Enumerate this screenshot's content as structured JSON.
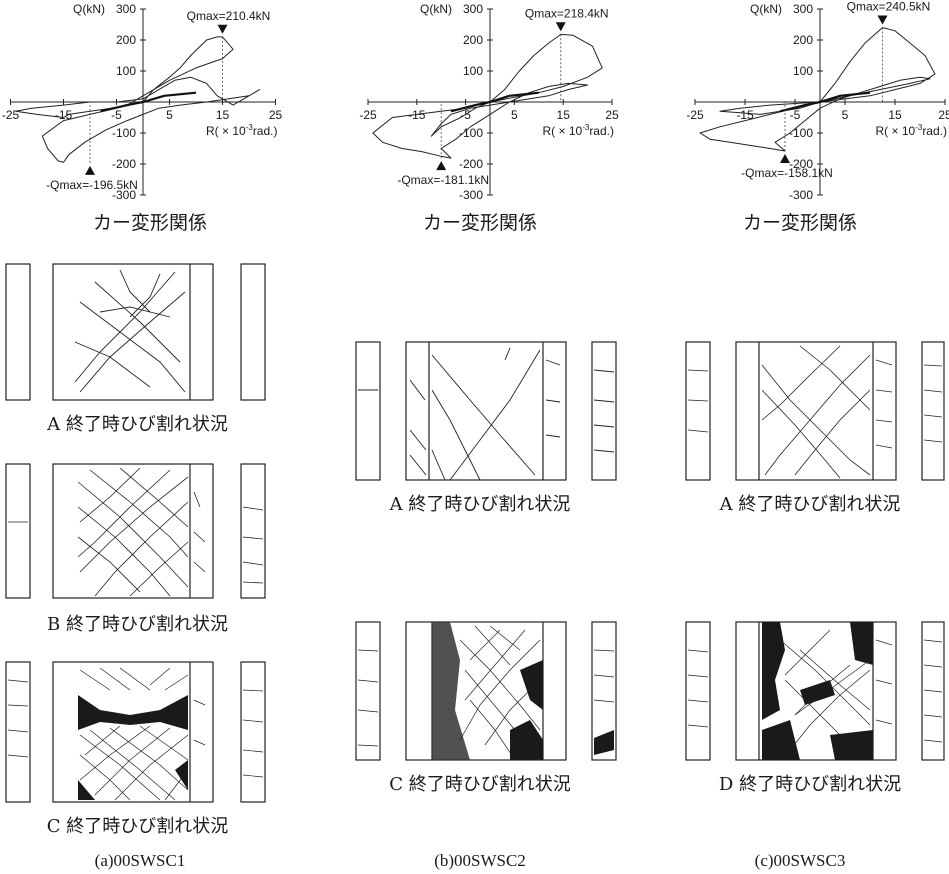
{
  "plot_title": "カー変形関係",
  "axis": {
    "y_label": "Q(kN)",
    "x_label": "R( × 10",
    "x_label_exp": "-3",
    "x_label_unit": "rad.)"
  },
  "specimens": [
    {
      "name": "(a)00SWSC1",
      "qmax_pos": "Qmax=210.4kN",
      "qmax_neg": "-Qmax=-196.5kN",
      "cracks": [
        "A 終了時ひび割れ状況",
        "B 終了時ひび割れ状況",
        "C 終了時ひび割れ状況"
      ]
    },
    {
      "name": "(b)00SWSC2",
      "qmax_pos": "Qmax=218.4kN",
      "qmax_neg": "-Qmax=-181.1kN",
      "cracks": [
        "A 終了時ひび割れ状況",
        "C 終了時ひび割れ状況"
      ]
    },
    {
      "name": "(c)00SWSC3",
      "qmax_pos": "Qmax=240.5kN",
      "qmax_neg": "-Qmax=-158.1kN",
      "cracks": [
        "A 終了時ひび割れ状況",
        "D 終了時ひび割れ状況"
      ]
    }
  ],
  "chart_data": [
    {
      "type": "line",
      "title": "カー変形関係",
      "xlabel": "R( × 10-3rad.)",
      "ylabel": "Q(kN)",
      "xlim": [
        -25,
        25
      ],
      "ylim": [
        -300,
        300
      ],
      "x_ticks": [
        -25,
        -15,
        -5,
        5,
        15,
        25
      ],
      "y_ticks": [
        300,
        200,
        100,
        -100,
        -200,
        -300
      ],
      "peak_pos": {
        "x": 15,
        "y": 210.4
      },
      "peak_neg": {
        "x": -10,
        "y": -196.5
      },
      "x": [
        0,
        2,
        5,
        7,
        9,
        12,
        14,
        15,
        17,
        15,
        10,
        5,
        0,
        -3,
        -6,
        -10,
        -14,
        -15,
        -20,
        -24,
        -21,
        -15,
        -10,
        -5,
        0,
        3,
        6,
        9,
        12,
        14,
        17,
        20,
        22,
        20,
        16,
        12,
        7,
        3,
        0,
        -3,
        -7,
        -11,
        -14,
        -15,
        -16,
        -18,
        -19,
        -15,
        -10,
        -5,
        0
      ],
      "y": [
        0,
        40,
        80,
        110,
        150,
        200,
        210,
        210,
        170,
        140,
        110,
        70,
        20,
        -10,
        -20,
        -30,
        -40,
        -50,
        -40,
        -30,
        -20,
        -10,
        0,
        0,
        10,
        40,
        70,
        80,
        60,
        20,
        -10,
        20,
        40,
        20,
        10,
        0,
        -10,
        -20,
        -40,
        -60,
        -90,
        -130,
        -170,
        -195,
        -190,
        -150,
        -110,
        -60,
        -40,
        -20,
        0
      ]
    },
    {
      "type": "line",
      "title": "カー変形関係",
      "xlabel": "R( × 10-3rad.)",
      "ylabel": "Q(kN)",
      "xlim": [
        -25,
        25
      ],
      "ylim": [
        -300,
        300
      ],
      "x_ticks": [
        -25,
        -15,
        -5,
        5,
        15,
        25
      ],
      "y_ticks": [
        300,
        200,
        100,
        -100,
        -200,
        -300
      ],
      "peak_pos": {
        "x": 14.5,
        "y": 218.4
      },
      "peak_neg": {
        "x": -10,
        "y": -181.1
      },
      "x": [
        0,
        3,
        6,
        9,
        12,
        14.5,
        17,
        21,
        23,
        20,
        15,
        10,
        5,
        0,
        -5,
        -10,
        -15,
        -20,
        -24,
        -22,
        -18,
        -14,
        -10,
        -8,
        -10,
        -7,
        -4,
        0,
        4,
        8,
        12,
        16,
        20,
        16,
        12,
        8,
        4,
        0,
        -4,
        -8,
        -10,
        -12,
        -10,
        -6,
        -3,
        0
      ],
      "y": [
        0,
        40,
        100,
        150,
        190,
        218,
        215,
        180,
        110,
        80,
        50,
        30,
        15,
        0,
        -20,
        -30,
        -40,
        -50,
        -100,
        -130,
        -150,
        -160,
        -175,
        -181,
        -150,
        -120,
        -80,
        -40,
        0,
        30,
        50,
        60,
        55,
        40,
        20,
        10,
        0,
        -10,
        -20,
        -40,
        -70,
        -110,
        -80,
        -50,
        -20,
        0
      ]
    },
    {
      "type": "line",
      "title": "カー変形関係",
      "xlabel": "R( × 10-3rad.)",
      "ylabel": "Q(kN)",
      "xlim": [
        -25,
        25
      ],
      "ylim": [
        -300,
        300
      ],
      "x_ticks": [
        -25,
        -15,
        -5,
        5,
        15,
        25
      ],
      "y_ticks": [
        300,
        200,
        100,
        -100,
        -200,
        -300
      ],
      "peak_pos": {
        "x": 12.5,
        "y": 240.5
      },
      "peak_neg": {
        "x": -7,
        "y": -158.1
      },
      "x": [
        0,
        3,
        6,
        9,
        12.5,
        15,
        18,
        21,
        23,
        20,
        15,
        10,
        5,
        0,
        -5,
        -10,
        -15,
        -20,
        -24,
        -22,
        -18,
        -14,
        -10,
        -7,
        -9,
        -6,
        -3,
        0,
        4,
        8,
        12,
        16,
        20,
        22,
        18,
        12,
        6,
        0,
        -4,
        -8,
        -12,
        -16,
        -20,
        -16,
        -10,
        -5,
        0
      ],
      "y": [
        0,
        60,
        130,
        190,
        240,
        230,
        190,
        150,
        90,
        60,
        40,
        20,
        10,
        0,
        -20,
        -40,
        -60,
        -80,
        -100,
        -120,
        -130,
        -140,
        -150,
        -158,
        -130,
        -100,
        -60,
        -20,
        10,
        30,
        50,
        70,
        80,
        75,
        60,
        40,
        20,
        0,
        -20,
        -30,
        -40,
        -35,
        -30,
        -20,
        -10,
        -5,
        0
      ]
    }
  ]
}
